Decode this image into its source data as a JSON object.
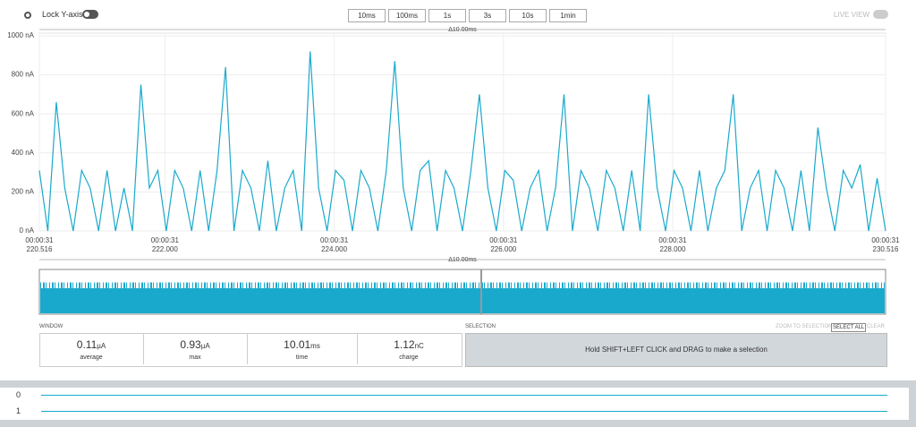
{
  "toolbar": {
    "lock_label": "Lock Y-axis",
    "buttons": [
      "10ms",
      "100ms",
      "1s",
      "3s",
      "10s",
      "1min"
    ],
    "live_view": "LIVE VIEW"
  },
  "chart_data": {
    "type": "line",
    "delta_label": "Δ10.00ms",
    "color": "#19a9cd",
    "grid": true,
    "xlim": [
      220.516,
      230.516
    ],
    "xticks": [
      {
        "value": 220.516,
        "label": "00:00:31\n220.516"
      },
      {
        "value": 222,
        "label": "00:00:31\n222.000"
      },
      {
        "value": 224,
        "label": "00:00:31\n224.000"
      },
      {
        "value": 226,
        "label": "00:00:31\n226.000"
      },
      {
        "value": 228,
        "label": "00:00:31\n228.000"
      },
      {
        "value": 230.516,
        "label": "00:00:31\n230.516"
      }
    ],
    "ylim": [
      0,
      1000
    ],
    "yticks": [
      {
        "value": 0,
        "label": "0 nA"
      },
      {
        "value": 200,
        "label": "200 nA"
      },
      {
        "value": 400,
        "label": "400 nA"
      },
      {
        "value": 600,
        "label": "600 nA"
      },
      {
        "value": 800,
        "label": "800 nA"
      },
      {
        "value": 1000,
        "label": "1000 nA"
      }
    ],
    "x": [
      220.516,
      220.616,
      220.716,
      220.816,
      220.916,
      221.016,
      221.116,
      221.216,
      221.316,
      221.416,
      221.516,
      221.616,
      221.716,
      221.816,
      221.916,
      222.016,
      222.116,
      222.216,
      222.316,
      222.416,
      222.516,
      222.616,
      222.716,
      222.816,
      222.916,
      223.016,
      223.116,
      223.216,
      223.316,
      223.416,
      223.516,
      223.616,
      223.716,
      223.816,
      223.916,
      224.016,
      224.116,
      224.216,
      224.316,
      224.416,
      224.516,
      224.616,
      224.716,
      224.816,
      224.916,
      225.016,
      225.116,
      225.216,
      225.316,
      225.416,
      225.516,
      225.616,
      225.716,
      225.816,
      225.916,
      226.016,
      226.116,
      226.216,
      226.316,
      226.416,
      226.516,
      226.616,
      226.716,
      226.816,
      226.916,
      227.016,
      227.116,
      227.216,
      227.316,
      227.416,
      227.516,
      227.616,
      227.716,
      227.816,
      227.916,
      228.016,
      228.116,
      228.216,
      228.316,
      228.416,
      228.516,
      228.616,
      228.716,
      228.816,
      228.916,
      229.016,
      229.116,
      229.216,
      229.316,
      229.416,
      229.516,
      229.616,
      229.716,
      229.816,
      229.916,
      230.016,
      230.116,
      230.216,
      230.316,
      230.416,
      230.516
    ],
    "values": [
      310,
      0,
      660,
      220,
      0,
      310,
      220,
      0,
      310,
      0,
      220,
      0,
      750,
      220,
      310,
      0,
      310,
      220,
      0,
      310,
      0,
      310,
      840,
      0,
      310,
      220,
      0,
      360,
      0,
      220,
      310,
      0,
      920,
      220,
      0,
      310,
      260,
      0,
      310,
      220,
      0,
      310,
      870,
      220,
      0,
      310,
      360,
      0,
      310,
      220,
      0,
      310,
      700,
      220,
      0,
      310,
      260,
      0,
      220,
      310,
      0,
      220,
      700,
      0,
      310,
      220,
      0,
      310,
      220,
      0,
      310,
      0,
      700,
      220,
      0,
      310,
      220,
      0,
      310,
      0,
      220,
      310,
      700,
      0,
      220,
      310,
      0,
      310,
      220,
      0,
      310,
      0,
      530,
      220,
      0,
      310,
      220,
      340,
      0,
      270,
      0
    ]
  },
  "overview": {
    "delta_label": "Δ10.00ms"
  },
  "window": {
    "title": "WINDOW",
    "stats": [
      {
        "value": 0.11,
        "unit": "µA",
        "label": "average"
      },
      {
        "value": 0.93,
        "unit": "µA",
        "label": "max"
      },
      {
        "value": 10.01,
        "unit": "ms",
        "label": "time"
      },
      {
        "value": 1.12,
        "unit": "nC",
        "label": "charge"
      }
    ]
  },
  "selection": {
    "title": "SELECTION",
    "buttons": [
      "ZOOM TO SELECTION",
      "SELECT ALL",
      "CLEAR"
    ],
    "hint": "Hold SHIFT+LEFT CLICK and DRAG to make a selection"
  },
  "channels": [
    "0",
    "1"
  ]
}
